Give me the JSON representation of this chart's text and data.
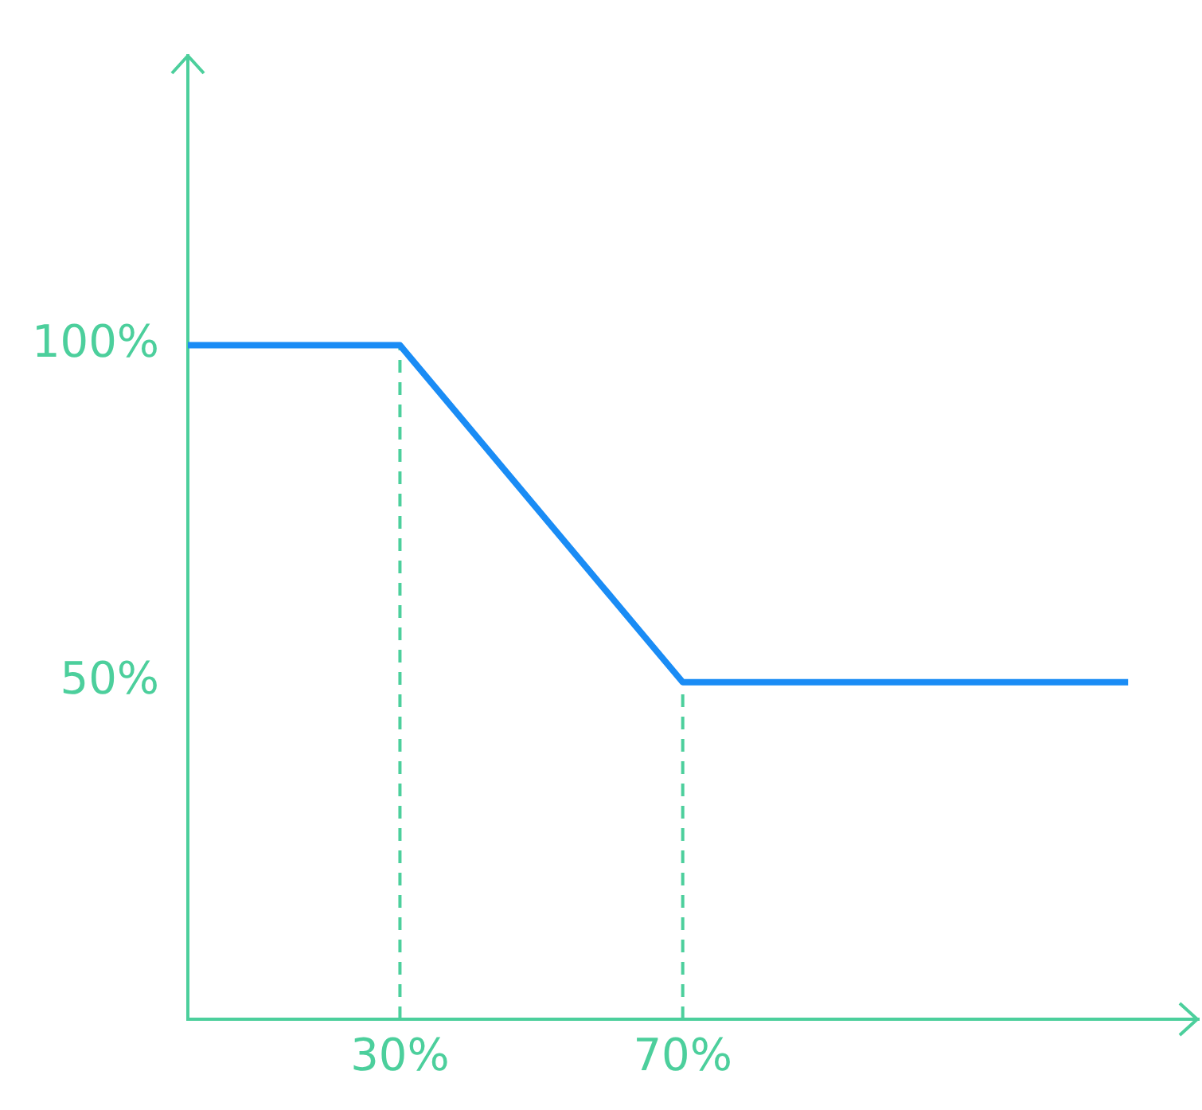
{
  "chart_data": {
    "type": "line",
    "x": [
      0,
      30,
      70,
      133
    ],
    "series": [
      {
        "color": "#1a8cf5",
        "values": [
          100,
          100,
          50,
          50
        ]
      }
    ],
    "xlim": [
      0,
      143
    ],
    "ylim": [
      0,
      143
    ],
    "xticks": [
      {
        "value": 30,
        "label": "30%"
      },
      {
        "value": 70,
        "label": "70%"
      }
    ],
    "yticks": [
      {
        "value": 50,
        "label": "50%"
      },
      {
        "value": 100,
        "label": "100%"
      }
    ],
    "ref_lines": [
      {
        "axis": "x",
        "value": 30,
        "color": "#4ccf9c",
        "line_style": "dashed"
      },
      {
        "axis": "x",
        "value": 70,
        "color": "#4ccf9c",
        "line_style": "dashed"
      }
    ],
    "grid": false,
    "legend": false,
    "marker": "none",
    "line_style": "solid"
  }
}
